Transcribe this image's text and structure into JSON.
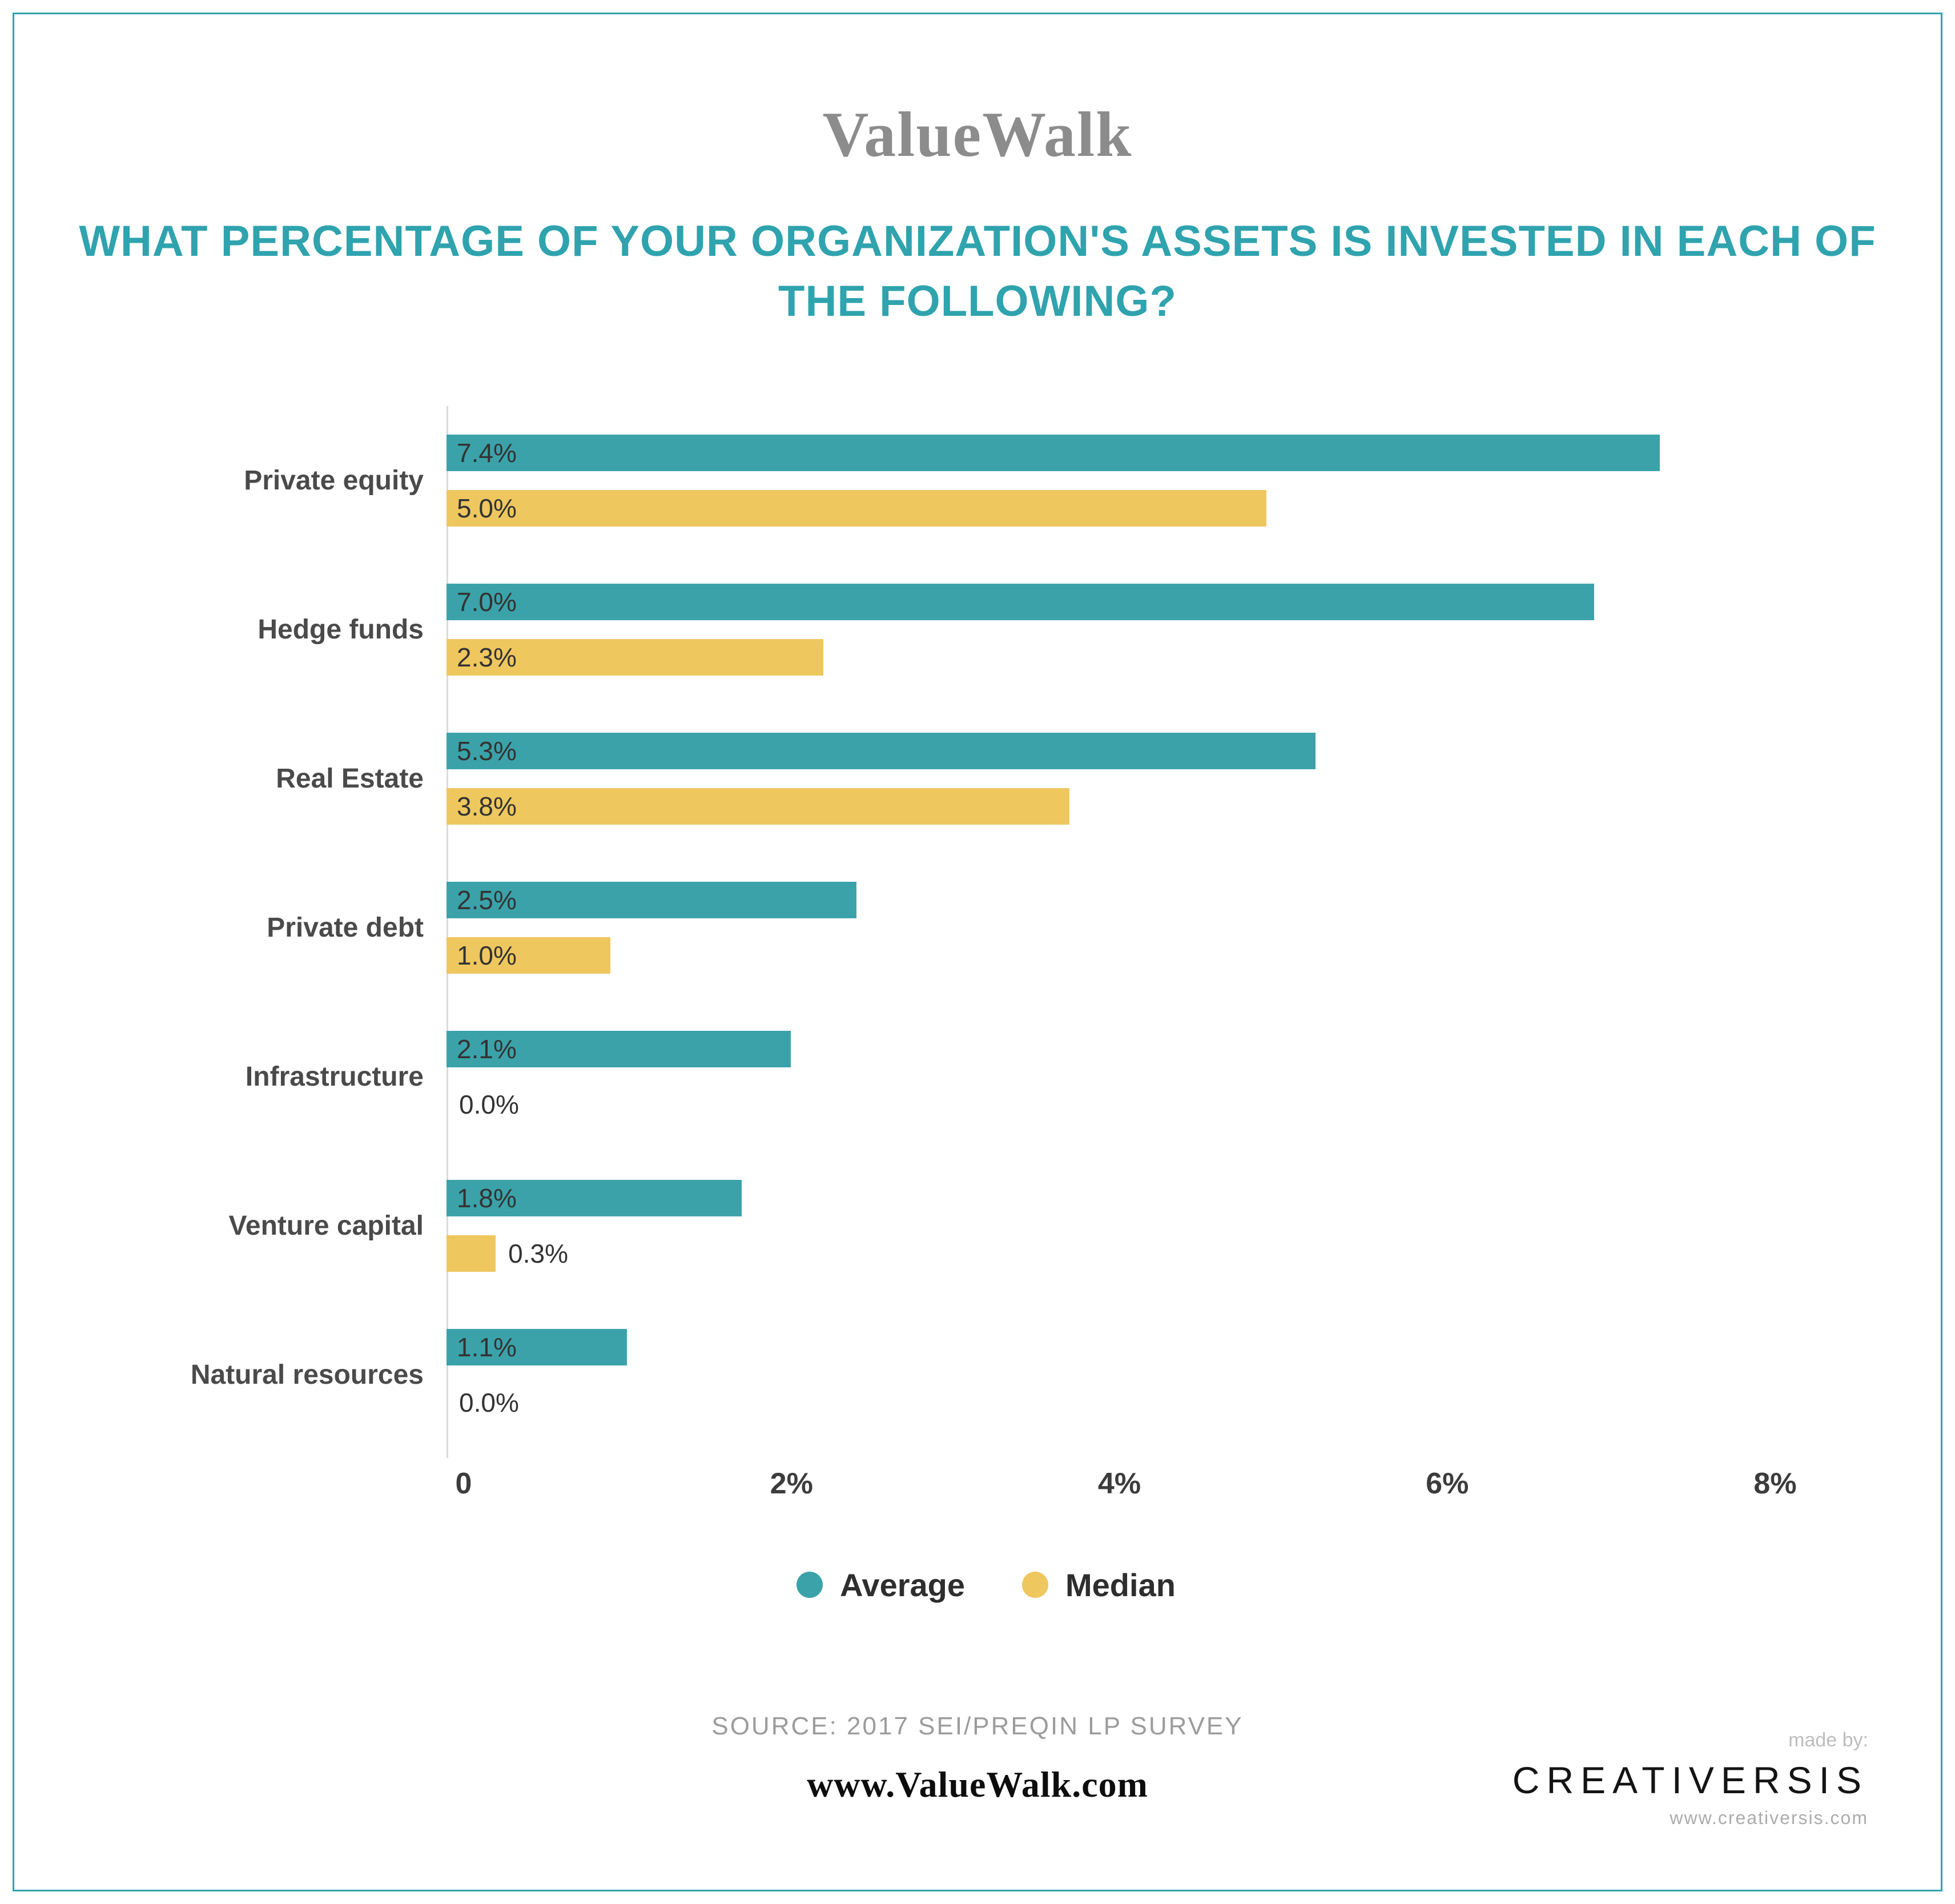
{
  "header": {
    "logo": "ValueWalk",
    "title": "WHAT PERCENTAGE OF YOUR ORGANIZATION'S ASSETS IS INVESTED IN EACH OF THE FOLLOWING?"
  },
  "chart_data": {
    "type": "bar",
    "orientation": "horizontal",
    "title": "WHAT PERCENTAGE OF YOUR ORGANIZATION'S ASSETS IS INVESTED IN EACH OF THE FOLLOWING?",
    "categories": [
      "Private equity",
      "Hedge funds",
      "Real Estate",
      "Private debt",
      "Infrastructure",
      "Venture capital",
      "Natural resources"
    ],
    "series": [
      {
        "name": "Average",
        "color": "#3BA2AA",
        "values": [
          7.4,
          7.0,
          5.3,
          2.5,
          2.1,
          1.8,
          1.1
        ]
      },
      {
        "name": "Median",
        "color": "#EFC75F",
        "values": [
          5.0,
          2.3,
          3.8,
          1.0,
          0.0,
          0.3,
          0.0
        ]
      }
    ],
    "xlim": [
      0,
      8
    ],
    "x_ticks": [
      {
        "label": "0",
        "value": 0
      },
      {
        "label": "2%",
        "value": 2
      },
      {
        "label": "4%",
        "value": 4
      },
      {
        "label": "6%",
        "value": 6
      },
      {
        "label": "8%",
        "value": 8
      }
    ],
    "grid": false,
    "legend_position": "bottom",
    "value_label_format": "{v}%"
  },
  "footer": {
    "source": "SOURCE: 2017 SEI/PREQIN LP SURVEY",
    "site": "www.ValueWalk.com",
    "made_by_label": "made by:",
    "made_by_name": "CREATIVERSIS",
    "made_by_url": "www.creativersis.com"
  }
}
